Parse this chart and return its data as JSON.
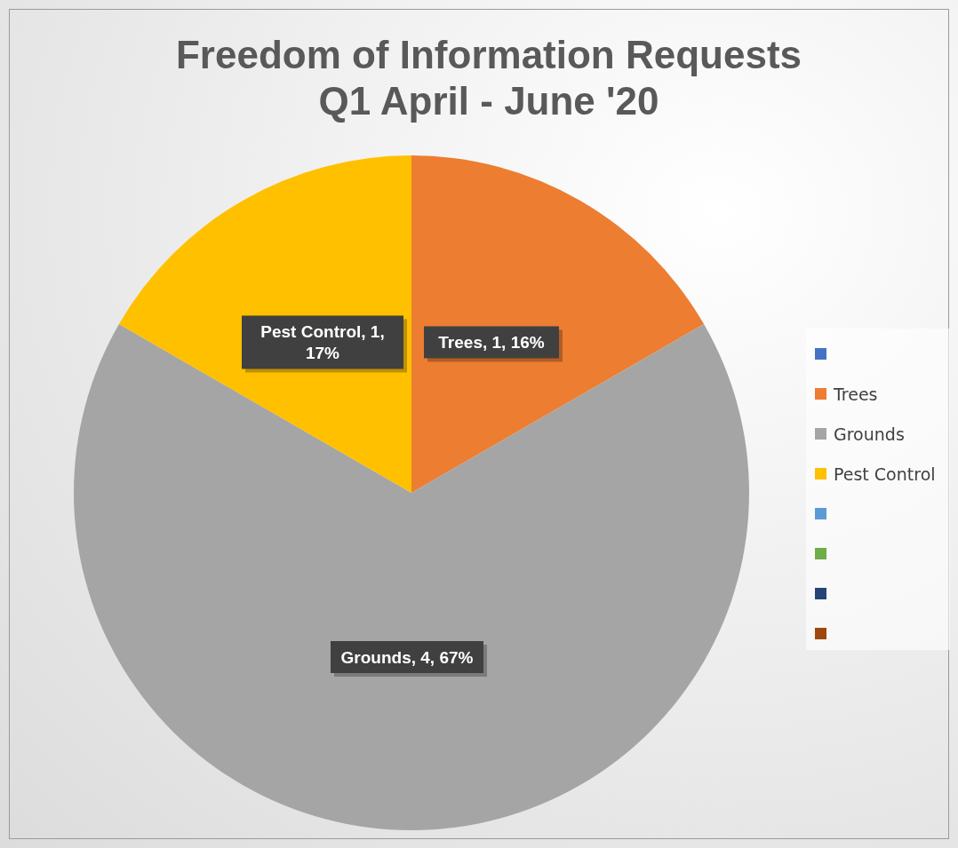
{
  "chart_data": {
    "type": "pie",
    "title": "Freedom of Information Requests\nQ1 April - June '20",
    "categories": [
      null,
      "Trees",
      "Grounds",
      "Pest Control",
      null,
      null,
      null,
      null
    ],
    "values": [
      null,
      1,
      4,
      1,
      null,
      null,
      null,
      null
    ],
    "colors": [
      "#4472c4",
      "#ed7d31",
      "#a5a5a5",
      "#ffc000",
      "#5b9bd5",
      "#70ad47",
      "#264478",
      "#9e480e"
    ],
    "value_labels": [
      null,
      "Trees, 1, 16%",
      "Grounds, 4, 67%",
      "Pest Control, 1, 17%",
      null,
      null,
      null,
      null
    ],
    "legend": "right"
  }
}
